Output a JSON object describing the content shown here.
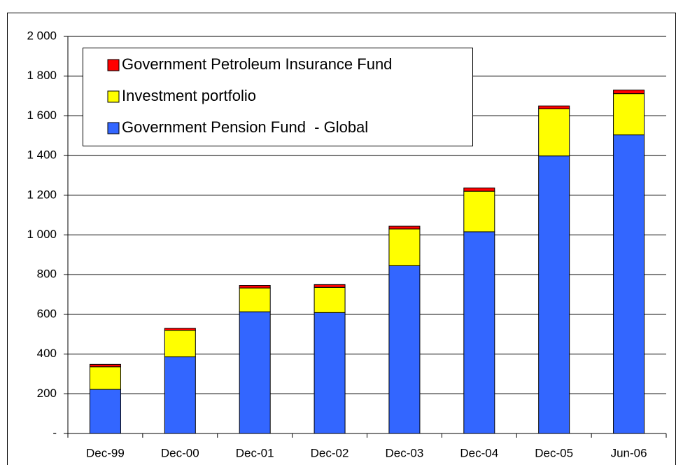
{
  "chart_data": {
    "type": "stacked_bar",
    "categories": [
      "Dec-99",
      "Dec-00",
      "Dec-01",
      "Dec-02",
      "Dec-03",
      "Dec-04",
      "Dec-05",
      "Jun-06"
    ],
    "series": [
      {
        "name": "Government Pension Fund  - Global",
        "color": "#3366ff",
        "values": [
          222,
          386,
          613,
          609,
          845,
          1016,
          1398,
          1504
        ]
      },
      {
        "name": "Investment portfolio",
        "color": "#ffff00",
        "values": [
          114,
          134,
          120,
          127,
          185,
          204,
          237,
          208
        ]
      },
      {
        "name": "Government Petroleum Insurance Fund",
        "color": "#ff0000",
        "values": [
          12,
          10,
          13,
          14,
          14,
          17,
          15,
          18
        ]
      }
    ],
    "ylim": [
      0,
      2000
    ],
    "yticks": [
      {
        "value": 0,
        "label": "-"
      },
      200,
      400,
      600,
      800,
      {
        "value": 1000,
        "label": "1 000"
      },
      {
        "value": 1200,
        "label": "1 200"
      },
      {
        "value": 1400,
        "label": "1 400"
      },
      {
        "value": 1600,
        "label": "1 600"
      },
      {
        "value": 1800,
        "label": "1 800"
      },
      {
        "value": 2000,
        "label": "2 000"
      }
    ],
    "grid": true
  }
}
